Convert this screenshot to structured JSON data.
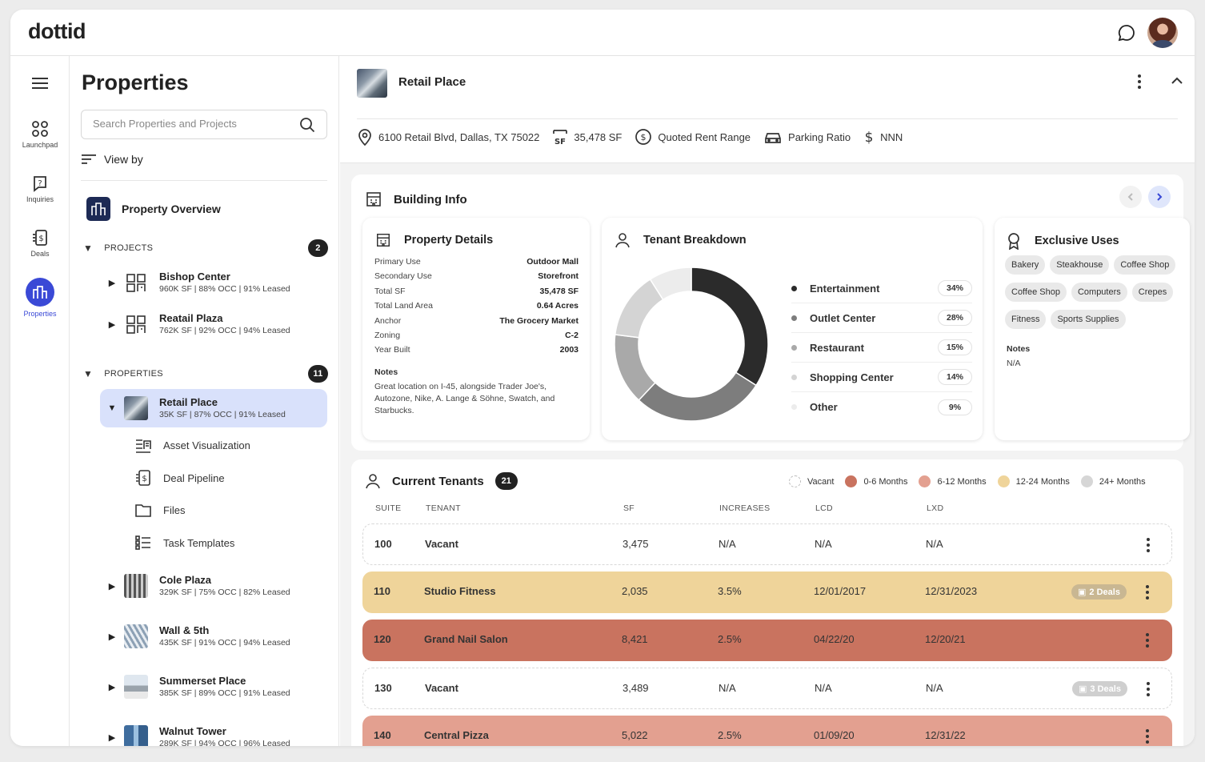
{
  "app": {
    "logo": "dottid"
  },
  "rail": {
    "items": [
      {
        "label": "Launchpad",
        "icon": "grid-icon"
      },
      {
        "label": "Inquiries",
        "icon": "question-icon"
      },
      {
        "label": "Deals",
        "icon": "dollar-doc-icon"
      },
      {
        "label": "Properties",
        "icon": "building-icon",
        "active": true
      }
    ]
  },
  "sidebar": {
    "title": "Properties",
    "search_placeholder": "Search Properties and Projects",
    "view_by": "View by",
    "overview": "Property Overview",
    "projects_label": "PROJECTS",
    "projects_count": "2",
    "projects": [
      {
        "name": "Bishop Center",
        "meta": "960K SF | 88% OCC | 91% Leased"
      },
      {
        "name": "Reatail Plaza",
        "meta": "762K SF | 92% OCC | 94% Leased"
      }
    ],
    "properties_label": "PROPERTIES",
    "properties_count": "11",
    "selected": {
      "name": "Retail Place",
      "meta": "35K SF | 87% OCC | 91% Leased"
    },
    "subitems": [
      "Asset Visualization",
      "Deal Pipeline",
      "Files",
      "Task Templates"
    ],
    "properties": [
      {
        "name": "Cole Plaza",
        "meta": "329K SF | 75% OCC | 82% Leased"
      },
      {
        "name": "Wall & 5th",
        "meta": "435K SF | 91% OCC | 94% Leased"
      },
      {
        "name": "Summerset Place",
        "meta": "385K SF | 89% OCC | 91% Leased"
      },
      {
        "name": "Walnut Tower",
        "meta": "289K SF | 94% OCC | 96% Leased"
      }
    ]
  },
  "header": {
    "title": "Retail Place",
    "address": "6100 Retail Blvd, Dallas, TX 75022",
    "sf": "35,478 SF",
    "rent": "Quoted Rent Range",
    "parking": "Parking Ratio",
    "lease_type": "NNN"
  },
  "building_info": {
    "title": "Building Info",
    "property_details": {
      "title": "Property Details",
      "rows": [
        {
          "k": "Primary Use",
          "v": "Outdoor Mall"
        },
        {
          "k": "Secondary Use",
          "v": "Storefront"
        },
        {
          "k": "Total SF",
          "v": "35,478 SF"
        },
        {
          "k": "Total Land Area",
          "v": "0.64 Acres"
        },
        {
          "k": "Anchor",
          "v": "The Grocery Market"
        },
        {
          "k": "Zoning",
          "v": "C-2"
        },
        {
          "k": "Year Built",
          "v": "2003"
        }
      ],
      "notes_label": "Notes",
      "notes": "Great location on I-45, alongside Trader Joe's, Autozone, Nike, A. Lange & Söhne, Swatch, and Starbucks."
    },
    "tenant_breakdown": {
      "title": "Tenant Breakdown",
      "segments": [
        {
          "name": "Entertainment",
          "pct": "34%",
          "value": 34,
          "color": "#2b2b2b"
        },
        {
          "name": "Outlet Center",
          "pct": "28%",
          "value": 28,
          "color": "#7d7d7d"
        },
        {
          "name": "Restaurant",
          "pct": "15%",
          "value": 15,
          "color": "#a9a9a9"
        },
        {
          "name": "Shopping Center",
          "pct": "14%",
          "value": 14,
          "color": "#d4d4d4"
        },
        {
          "name": "Other",
          "pct": "9%",
          "value": 9,
          "color": "#ececec"
        }
      ]
    },
    "exclusive_uses": {
      "title": "Exclusive Uses",
      "chips": [
        "Bakery",
        "Steakhouse",
        "Coffee Shop",
        "Coffee Shop",
        "Computers",
        "Crepes",
        "Fitness",
        "Sports Supplies"
      ],
      "notes_label": "Notes",
      "notes": "N/A"
    }
  },
  "tenants": {
    "title": "Current Tenants",
    "count": "21",
    "legend": [
      {
        "label": "Vacant",
        "color": "#ffffff"
      },
      {
        "label": "0-6 Months",
        "color": "#c9735f"
      },
      {
        "label": "6-12 Months",
        "color": "#e3a090"
      },
      {
        "label": "12-24 Months",
        "color": "#efd49a"
      },
      {
        "label": "24+ Months",
        "color": "#d6d6d6"
      }
    ],
    "columns": [
      "SUITE",
      "TENANT",
      "SF",
      "INCREASES",
      "LCD",
      "LXD"
    ],
    "rows": [
      {
        "suite": "100",
        "tenant": "Vacant",
        "sf": "3,475",
        "inc": "N/A",
        "lcd": "N/A",
        "lxd": "N/A",
        "deals": "",
        "status": "Vacant"
      },
      {
        "suite": "110",
        "tenant": "Studio Fitness",
        "sf": "2,035",
        "inc": "3.5%",
        "lcd": "12/01/2017",
        "lxd": "12/31/2023",
        "deals": "2 Deals",
        "status": "12-24 Months"
      },
      {
        "suite": "120",
        "tenant": "Grand Nail Salon",
        "sf": "8,421",
        "inc": "2.5%",
        "lcd": "04/22/20",
        "lxd": "12/20/21",
        "deals": "",
        "status": "0-6 Months"
      },
      {
        "suite": "130",
        "tenant": "Vacant",
        "sf": "3,489",
        "inc": "N/A",
        "lcd": "N/A",
        "lxd": "N/A",
        "deals": "3 Deals",
        "status": "Vacant"
      },
      {
        "suite": "140",
        "tenant": "Central Pizza",
        "sf": "5,022",
        "inc": "2.5%",
        "lcd": "01/09/20",
        "lxd": "12/31/22",
        "deals": "",
        "status": "6-12 Months"
      }
    ]
  }
}
